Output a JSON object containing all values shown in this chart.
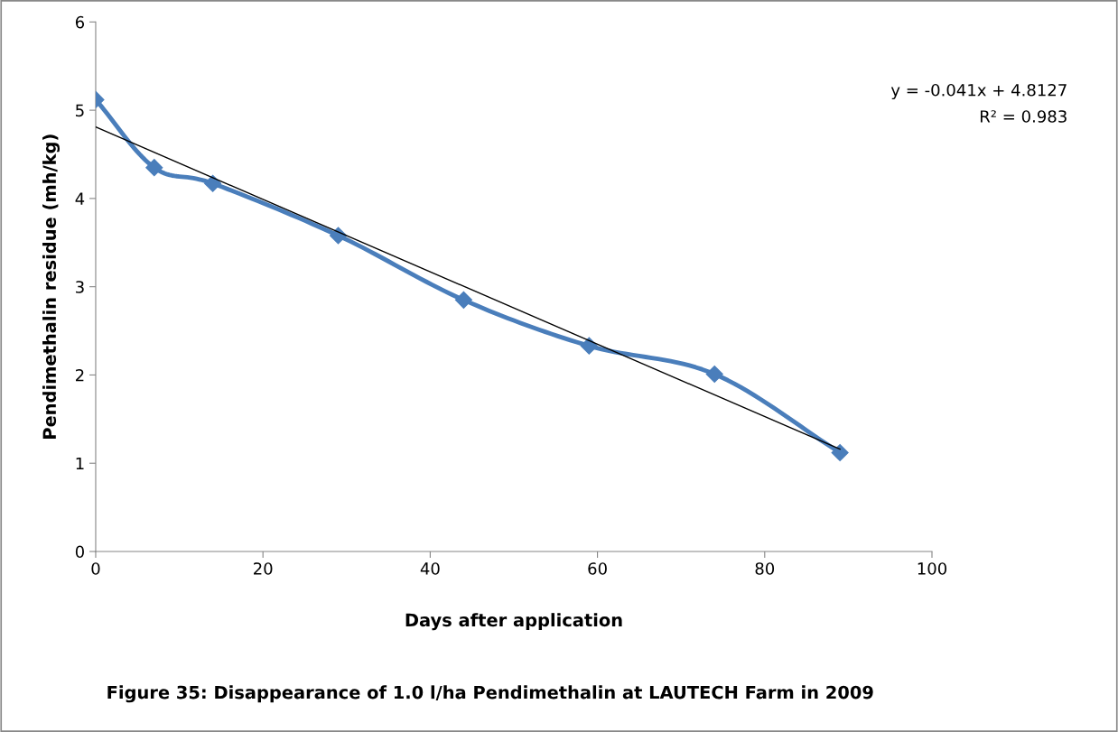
{
  "chart_data": {
    "type": "line",
    "title": "Figure 35: Disappearance of 1.0 l/ha Pendimethalin at LAUTECH Farm in 2009",
    "xlabel": "Days after application",
    "ylabel": "Pendimethalin residue (mh/kg)",
    "x": [
      0,
      7,
      14,
      29,
      44,
      59,
      74,
      89
    ],
    "series": [
      {
        "color": "#4a7ebb",
        "values": [
          5.12,
          4.35,
          4.17,
          3.58,
          2.85,
          2.33,
          2.01,
          1.12
        ],
        "marker": "diamond"
      },
      {
        "type": "line",
        "color": "#000000",
        "x": [
          0,
          89
        ],
        "values": [
          4.81,
          1.16
        ],
        "marker": "none"
      }
    ],
    "annotations": [
      "y = -0.041x + 4.8127",
      "R² = 0.983"
    ],
    "xlim": [
      0,
      100
    ],
    "xticks": [
      0,
      20,
      40,
      60,
      80,
      100
    ],
    "ylim": [
      0,
      6
    ],
    "yticks": [
      0,
      1,
      2,
      3,
      4,
      5,
      6
    ],
    "grid": false,
    "legend": false
  }
}
